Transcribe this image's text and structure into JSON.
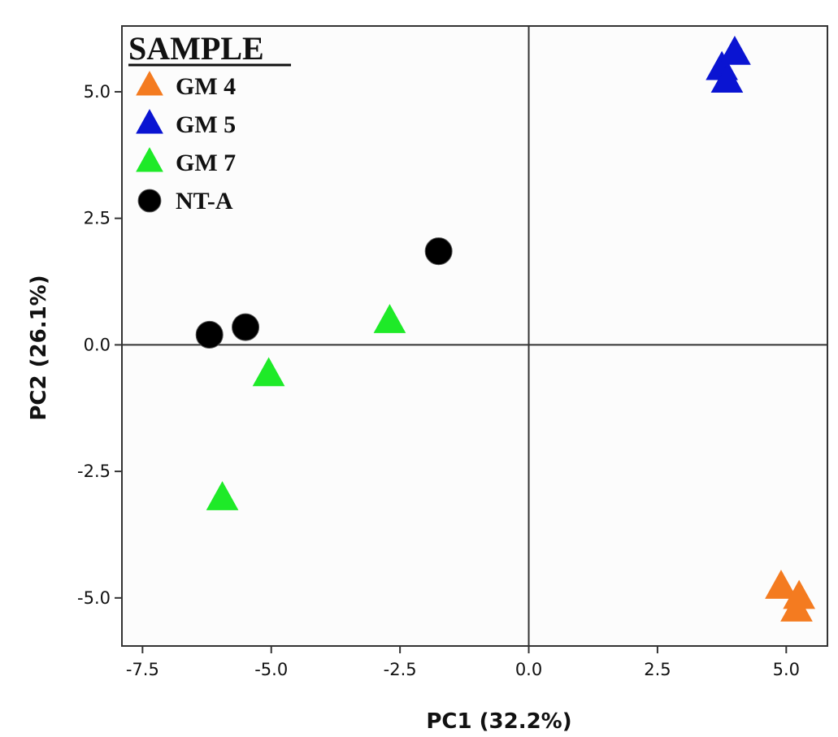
{
  "chart_data": {
    "type": "scatter",
    "xlabel": "PC1 (32.2%)",
    "ylabel": "PC2 (26.1%)",
    "xlim": [
      -7.9,
      5.8
    ],
    "ylim": [
      -5.95,
      6.3
    ],
    "x_ticks": [
      -7.5,
      -5.0,
      -2.5,
      0.0,
      2.5,
      5.0
    ],
    "x_tick_labels": [
      "-7.5",
      "-5.0",
      "-2.5",
      "0.0",
      "2.5",
      "5.0"
    ],
    "y_ticks": [
      5.0,
      2.5,
      0.0,
      -2.5,
      -5.0
    ],
    "y_tick_labels": [
      "5.0",
      "2.5",
      "0.0",
      "-2.5",
      "-5.0"
    ],
    "reference_lines": {
      "x": 0,
      "y": 0
    },
    "grid": false,
    "legend": {
      "title": "SAMPLE",
      "position": "top-left"
    },
    "series": [
      {
        "name": "GM 4",
        "marker": "triangle",
        "color": "#f47b20",
        "points": [
          [
            4.9,
            -4.8
          ],
          [
            5.25,
            -5.0
          ],
          [
            5.2,
            -5.25
          ]
        ]
      },
      {
        "name": "GM 5",
        "marker": "triangle",
        "color": "#0a14d2",
        "points": [
          [
            3.75,
            5.45
          ],
          [
            4.0,
            5.75
          ],
          [
            3.85,
            5.2
          ]
        ]
      },
      {
        "name": "GM 7",
        "marker": "triangle",
        "color": "#1eea28",
        "points": [
          [
            -2.7,
            0.45
          ],
          [
            -5.05,
            -0.6
          ],
          [
            -5.95,
            -3.05
          ]
        ]
      },
      {
        "name": "NT-A",
        "marker": "circle",
        "color": "#000000",
        "points": [
          [
            -1.75,
            1.85
          ],
          [
            -5.5,
            0.35
          ],
          [
            -6.2,
            0.2
          ]
        ]
      }
    ]
  }
}
